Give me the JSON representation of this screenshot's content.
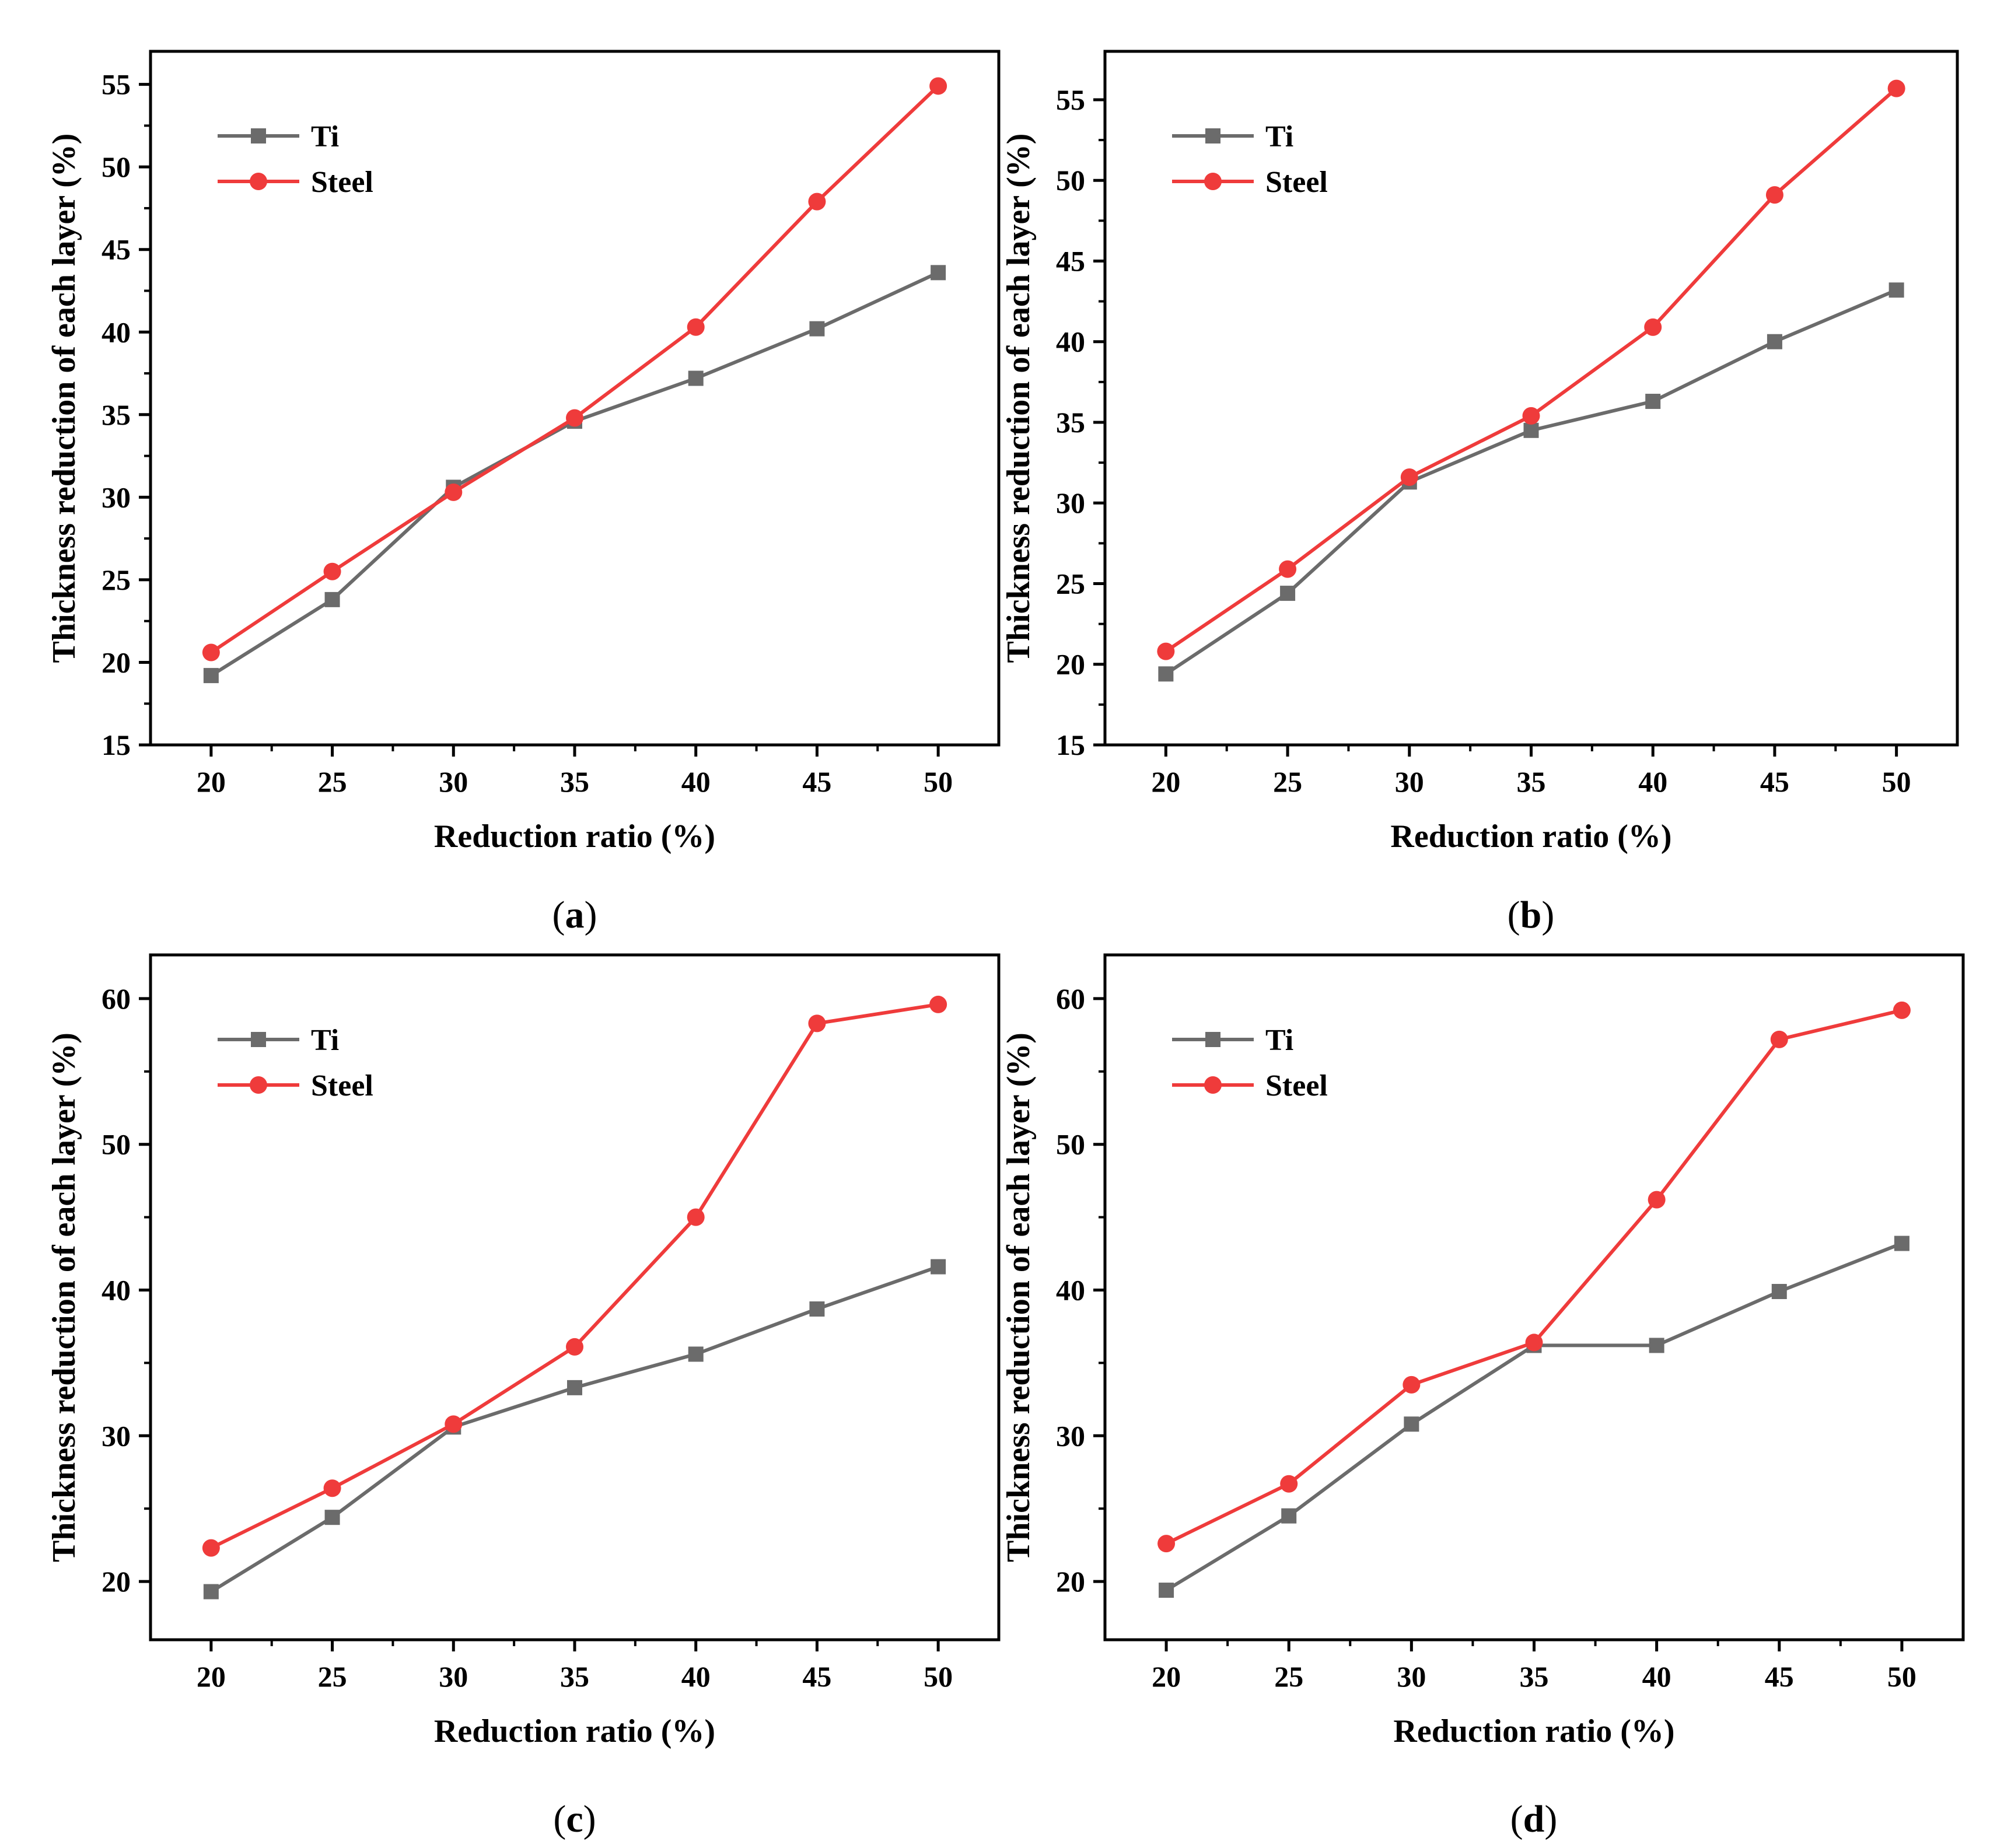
{
  "figure": {
    "colors": {
      "Ti": "#6b6b6b",
      "Steel": "#ef3b3b",
      "axis": "#000000"
    }
  },
  "chart_data": [
    {
      "panel": "a",
      "type": "line",
      "xlabel": "Reduction ratio (%)",
      "ylabel": "Thickness reduction of each layer (%)",
      "x": [
        20,
        25,
        30,
        35,
        40,
        45,
        50
      ],
      "xlim": [
        17.5,
        52.5
      ],
      "ylim": [
        15,
        57
      ],
      "xticks": [
        20,
        25,
        30,
        35,
        40,
        45,
        50
      ],
      "yticks": [
        15,
        20,
        25,
        30,
        35,
        40,
        45,
        50,
        55
      ],
      "legend": "top-left",
      "series": [
        {
          "name": "Ti",
          "marker": "square",
          "values": [
            19.2,
            23.8,
            30.6,
            34.6,
            37.2,
            40.2,
            43.6
          ]
        },
        {
          "name": "Steel",
          "marker": "circle",
          "values": [
            20.6,
            25.5,
            30.3,
            34.8,
            40.3,
            47.9,
            54.9
          ]
        }
      ]
    },
    {
      "panel": "b",
      "type": "line",
      "xlabel": "Reduction ratio (%)",
      "ylabel": "Thickness reduction of each layer (%)",
      "x": [
        20,
        25,
        30,
        35,
        40,
        45,
        50
      ],
      "xlim": [
        17.5,
        52.5
      ],
      "ylim": [
        15,
        58
      ],
      "xticks": [
        20,
        25,
        30,
        35,
        40,
        45,
        50
      ],
      "yticks": [
        15,
        20,
        25,
        30,
        35,
        40,
        45,
        50,
        55
      ],
      "legend": "top-left",
      "series": [
        {
          "name": "Ti",
          "marker": "square",
          "values": [
            19.4,
            24.4,
            31.3,
            34.5,
            36.3,
            40.0,
            43.2
          ]
        },
        {
          "name": "Steel",
          "marker": "circle",
          "values": [
            20.8,
            25.9,
            31.6,
            35.4,
            40.9,
            49.1,
            55.7
          ]
        }
      ]
    },
    {
      "panel": "c",
      "type": "line",
      "xlabel": "Reduction ratio (%)",
      "ylabel": "Thickness reduction of each layer (%)",
      "x": [
        20,
        25,
        30,
        35,
        40,
        45,
        50
      ],
      "xlim": [
        17.5,
        52.5
      ],
      "ylim": [
        16,
        63
      ],
      "xticks": [
        20,
        25,
        30,
        35,
        40,
        45,
        50
      ],
      "yticks": [
        20,
        30,
        40,
        50,
        60
      ],
      "legend": "top-left",
      "series": [
        {
          "name": "Ti",
          "marker": "square",
          "values": [
            19.3,
            24.4,
            30.6,
            33.3,
            35.6,
            38.7,
            41.6
          ]
        },
        {
          "name": "Steel",
          "marker": "circle",
          "values": [
            22.3,
            26.4,
            30.8,
            36.1,
            45.0,
            58.3,
            59.6
          ]
        }
      ]
    },
    {
      "panel": "d",
      "type": "line",
      "xlabel": "Reduction ratio (%)",
      "ylabel": "Thickness reduction of each layer (%)",
      "x": [
        20,
        25,
        30,
        35,
        40,
        45,
        50
      ],
      "xlim": [
        17.5,
        52.5
      ],
      "ylim": [
        16,
        63
      ],
      "xticks": [
        20,
        25,
        30,
        35,
        40,
        45,
        50
      ],
      "yticks": [
        20,
        30,
        40,
        50,
        60
      ],
      "legend": "top-left",
      "series": [
        {
          "name": "Ti",
          "marker": "square",
          "values": [
            19.4,
            24.5,
            30.8,
            36.2,
            36.2,
            39.9,
            43.2
          ]
        },
        {
          "name": "Steel",
          "marker": "circle",
          "values": [
            22.6,
            26.7,
            33.5,
            36.4,
            46.2,
            57.2,
            59.2
          ]
        }
      ]
    }
  ]
}
